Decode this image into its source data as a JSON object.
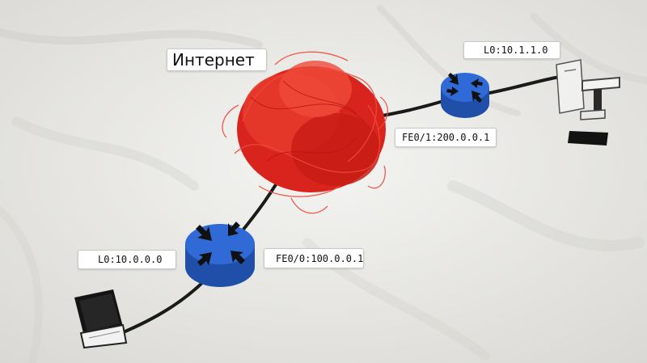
{
  "title": "Интернет",
  "labels": {
    "router_remote_loopback": "L0:10.1.1.0",
    "router_remote_interface": "FE0/1:200.0.0.1",
    "router_local_loopback": "L0:10.0.0.0",
    "router_local_interface": "FE0/0:100.0.0.1"
  },
  "colors": {
    "background": "#ecebe8",
    "cloud": "#e52b22",
    "router": "#2f6ad6",
    "cable": "#1a1a1a"
  },
  "icons": [
    "router-icon",
    "router-icon",
    "laptop-icon",
    "desktop-icon",
    "internet-cloud"
  ]
}
